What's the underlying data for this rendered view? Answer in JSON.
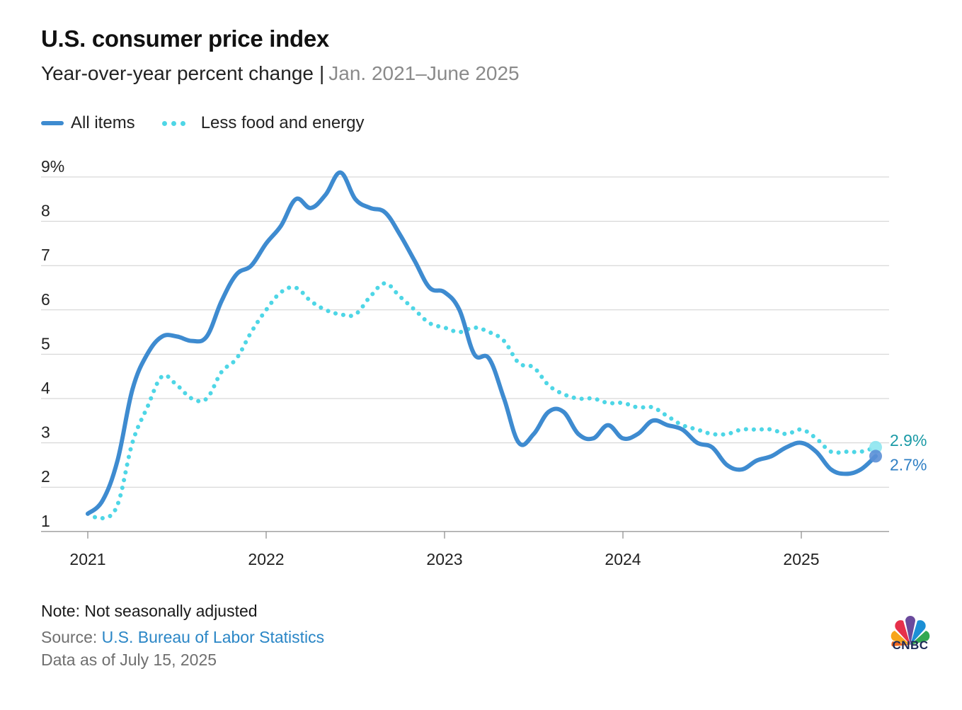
{
  "title": "U.S. consumer price index",
  "subtitle": "Year-over-year percent change",
  "subtitle_separator": "|",
  "date_range": "Jan. 2021–June 2025",
  "legend": [
    {
      "name": "All items",
      "style": "solid",
      "color": "#3e8bd0"
    },
    {
      "name": "Less food and energy",
      "style": "dotted",
      "color": "#4ed6e6"
    }
  ],
  "footer": {
    "note": "Note: Not seasonally adjusted",
    "source_label": "Source: ",
    "source_link": "U.S. Bureau of Labor Statistics",
    "as_of": "Data as of July 15, 2025"
  },
  "logo": {
    "text": "CNBC",
    "icon": "peacock-logo-icon"
  },
  "chart_data": {
    "type": "line",
    "x_tick_labels": [
      "2021",
      "2022",
      "2023",
      "2024",
      "2025"
    ],
    "y_tick_labels": [
      "1",
      "2",
      "3",
      "4",
      "5",
      "6",
      "7",
      "8",
      "9%"
    ],
    "ylim": [
      1,
      9
    ],
    "grid": true,
    "x": [
      "2021-01",
      "2021-02",
      "2021-03",
      "2021-04",
      "2021-05",
      "2021-06",
      "2021-07",
      "2021-08",
      "2021-09",
      "2021-10",
      "2021-11",
      "2021-12",
      "2022-01",
      "2022-02",
      "2022-03",
      "2022-04",
      "2022-05",
      "2022-06",
      "2022-07",
      "2022-08",
      "2022-09",
      "2022-10",
      "2022-11",
      "2022-12",
      "2023-01",
      "2023-02",
      "2023-03",
      "2023-04",
      "2023-05",
      "2023-06",
      "2023-07",
      "2023-08",
      "2023-09",
      "2023-10",
      "2023-11",
      "2023-12",
      "2024-01",
      "2024-02",
      "2024-03",
      "2024-04",
      "2024-05",
      "2024-06",
      "2024-07",
      "2024-08",
      "2024-09",
      "2024-10",
      "2024-11",
      "2024-12",
      "2025-01",
      "2025-02",
      "2025-03",
      "2025-04",
      "2025-05",
      "2025-06"
    ],
    "series": [
      {
        "name": "All items",
        "color": "#3e8bd0",
        "end_label": "2.7%",
        "values": [
          1.4,
          1.7,
          2.6,
          4.2,
          5.0,
          5.4,
          5.4,
          5.3,
          5.4,
          6.2,
          6.8,
          7.0,
          7.5,
          7.9,
          8.5,
          8.3,
          8.6,
          9.1,
          8.5,
          8.3,
          8.2,
          7.7,
          7.1,
          6.5,
          6.4,
          6.0,
          5.0,
          4.9,
          4.0,
          3.0,
          3.2,
          3.7,
          3.7,
          3.2,
          3.1,
          3.4,
          3.1,
          3.2,
          3.5,
          3.4,
          3.3,
          3.0,
          2.9,
          2.5,
          2.4,
          2.6,
          2.7,
          2.9,
          3.0,
          2.8,
          2.4,
          2.3,
          2.4,
          2.7
        ]
      },
      {
        "name": "Less food and energy",
        "color": "#4ed6e6",
        "end_label": "2.9%",
        "values": [
          1.4,
          1.3,
          1.6,
          3.0,
          3.8,
          4.5,
          4.3,
          4.0,
          4.0,
          4.6,
          4.9,
          5.5,
          6.0,
          6.4,
          6.5,
          6.2,
          6.0,
          5.9,
          5.9,
          6.3,
          6.6,
          6.3,
          6.0,
          5.7,
          5.6,
          5.5,
          5.6,
          5.5,
          5.3,
          4.8,
          4.7,
          4.3,
          4.1,
          4.0,
          4.0,
          3.9,
          3.9,
          3.8,
          3.8,
          3.6,
          3.4,
          3.3,
          3.2,
          3.2,
          3.3,
          3.3,
          3.3,
          3.2,
          3.3,
          3.1,
          2.8,
          2.8,
          2.8,
          2.9
        ]
      }
    ]
  }
}
